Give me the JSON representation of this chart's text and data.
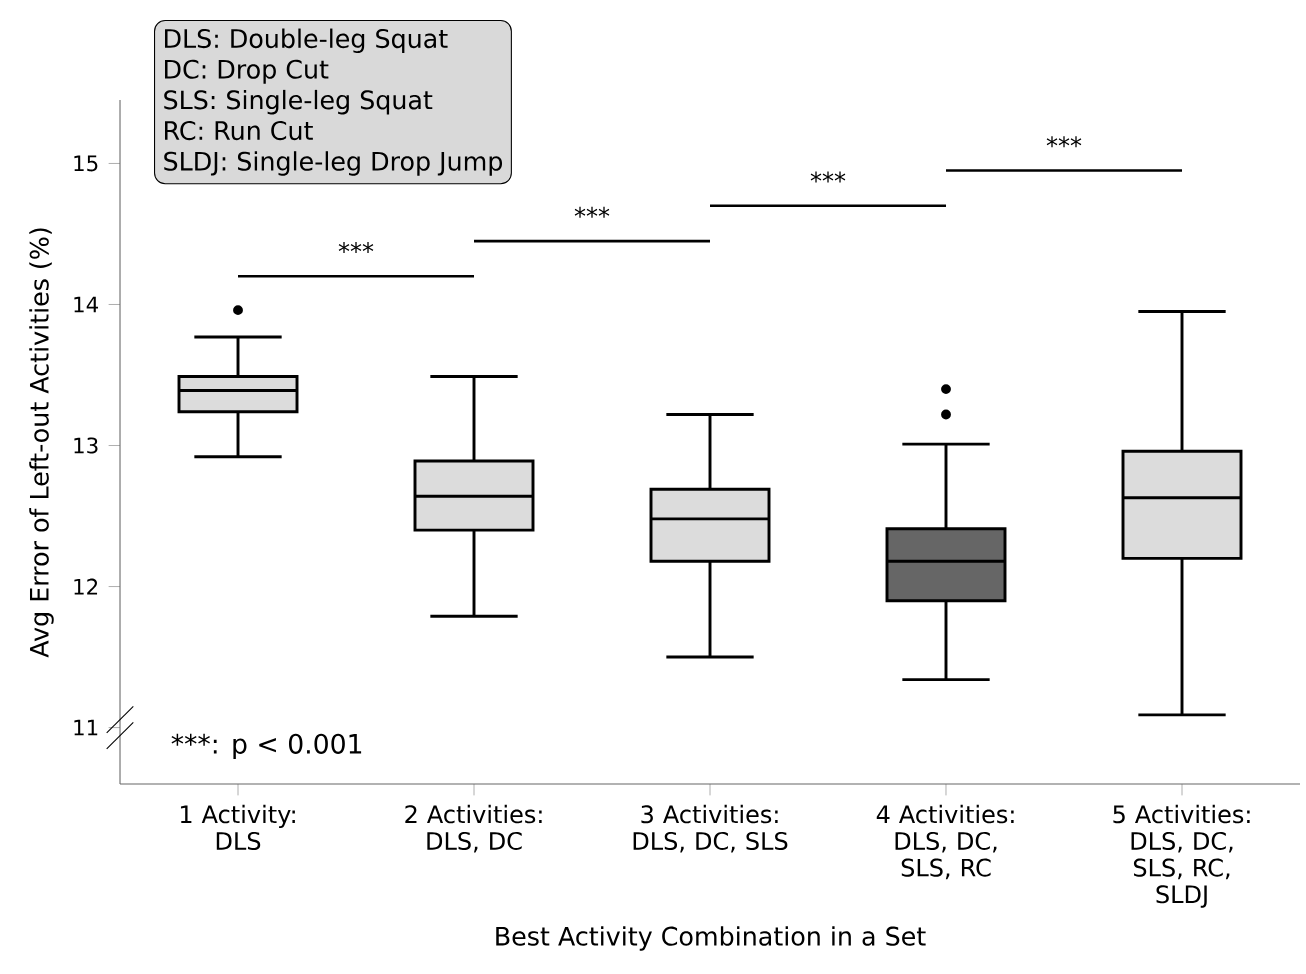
{
  "chart_data": {
    "type": "box",
    "xlabel": "Best Activity Combination in a Set",
    "ylabel": "Avg Error of Left-out Activities (%)",
    "categories": [
      "1 Activity: DLS",
      "2 Activities: DLS, DC",
      "3 Activities: DLS, DC, SLS",
      "4 Activities: DLS, DC, SLS, RC",
      "5 Activities: DLS, DC, SLS, RC, SLDJ"
    ],
    "boxes": [
      {
        "low": 12.92,
        "q1": 13.24,
        "median": 13.39,
        "q3": 13.49,
        "high": 13.77,
        "outliers": [
          13.96
        ]
      },
      {
        "low": 11.79,
        "q1": 12.4,
        "median": 12.64,
        "q3": 12.89,
        "high": 13.49
      },
      {
        "low": 11.5,
        "q1": 12.18,
        "median": 12.48,
        "q3": 12.69,
        "high": 13.22
      },
      {
        "low": 11.34,
        "q1": 11.9,
        "median": 12.18,
        "q3": 12.41,
        "high": 13.01,
        "outliers": [
          13.22,
          13.4
        ]
      },
      {
        "low": 11.09,
        "q1": 12.2,
        "median": 12.63,
        "q3": 12.96,
        "high": 13.95
      }
    ],
    "colors": [
      "#dcdcdc",
      "#dcdcdc",
      "#dcdcdc",
      "#666666",
      "#dcdcdc"
    ],
    "ylim": [
      10.6,
      15.45
    ],
    "yticks": [
      11,
      12,
      13,
      14,
      15
    ],
    "grid": false,
    "annotations": [
      "***",
      "***",
      "***",
      "***",
      "***: p < 0.001",
      "DLS: Double-leg Squat",
      "DC: Drop Cut",
      "SLS: Single-leg Squat",
      "RC: Run Cut",
      "SLDJ: Single-leg Drop Jump"
    ]
  }
}
